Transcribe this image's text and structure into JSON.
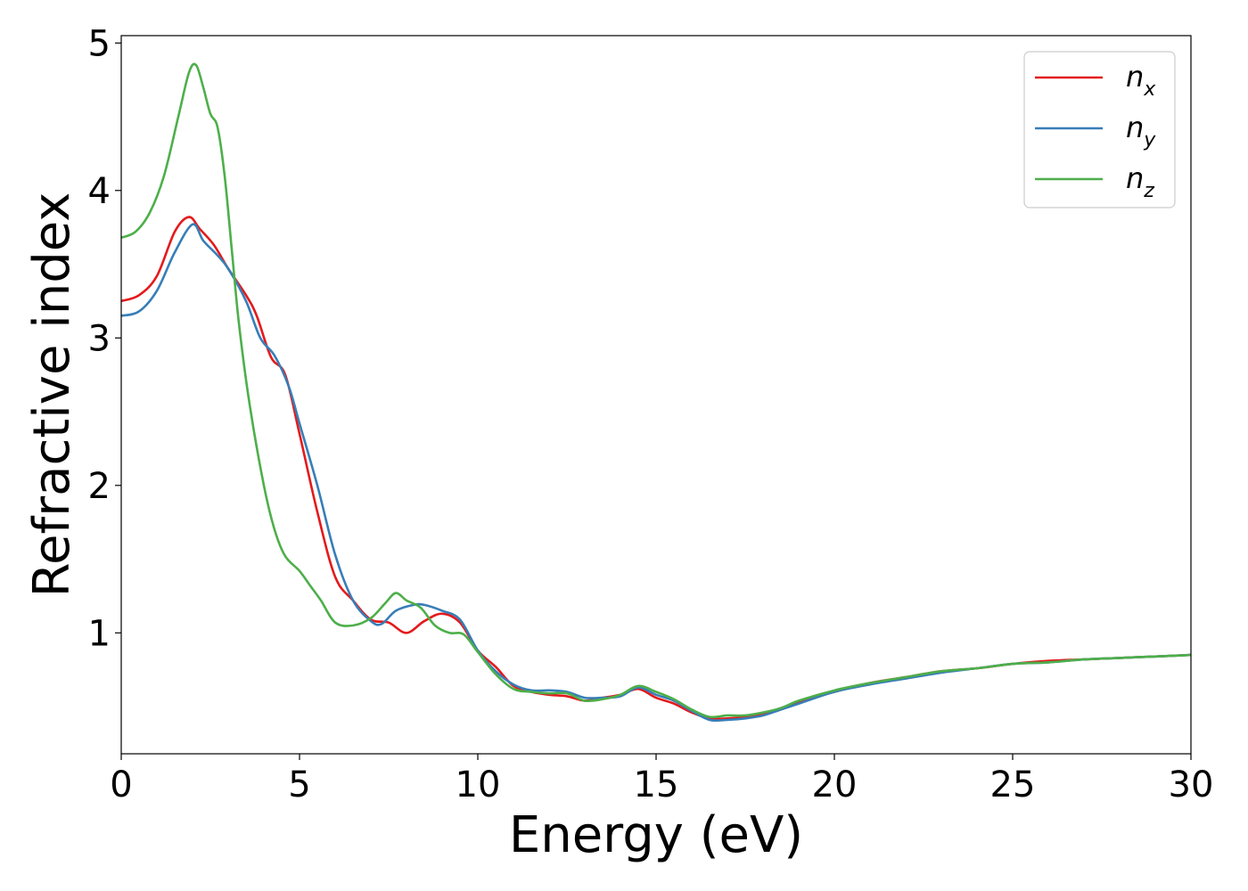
{
  "chart_data": {
    "type": "line",
    "title": "",
    "xlabel": "Energy (eV)",
    "ylabel": "Refractive index",
    "xlim": [
      0,
      30
    ],
    "ylim": [
      0.18,
      5.05
    ],
    "xticks": [
      "0",
      "5",
      "10",
      "15",
      "20",
      "25",
      "30"
    ],
    "yticks": [
      "1",
      "2",
      "3",
      "4",
      "5"
    ],
    "grid": false,
    "legend_position": "top-right",
    "series": [
      {
        "name": "n",
        "subscript": "x",
        "color": "#e41a1c",
        "points": [
          [
            0,
            3.25
          ],
          [
            0.5,
            3.29
          ],
          [
            1,
            3.42
          ],
          [
            1.5,
            3.72
          ],
          [
            1.9,
            3.82
          ],
          [
            2.2,
            3.74
          ],
          [
            2.6,
            3.63
          ],
          [
            3,
            3.47
          ],
          [
            3.5,
            3.29
          ],
          [
            3.8,
            3.15
          ],
          [
            4.2,
            2.87
          ],
          [
            4.6,
            2.75
          ],
          [
            5,
            2.35
          ],
          [
            5.5,
            1.82
          ],
          [
            6,
            1.38
          ],
          [
            6.5,
            1.22
          ],
          [
            7,
            1.09
          ],
          [
            7.5,
            1.07
          ],
          [
            8,
            1.0
          ],
          [
            8.5,
            1.08
          ],
          [
            9,
            1.13
          ],
          [
            9.5,
            1.07
          ],
          [
            10,
            0.88
          ],
          [
            10.5,
            0.77
          ],
          [
            11,
            0.64
          ],
          [
            11.5,
            0.6
          ],
          [
            12,
            0.58
          ],
          [
            12.5,
            0.57
          ],
          [
            13,
            0.54
          ],
          [
            13.5,
            0.56
          ],
          [
            14,
            0.58
          ],
          [
            14.5,
            0.62
          ],
          [
            15,
            0.56
          ],
          [
            15.5,
            0.52
          ],
          [
            16,
            0.46
          ],
          [
            16.5,
            0.42
          ],
          [
            17,
            0.42
          ],
          [
            17.5,
            0.43
          ],
          [
            18,
            0.45
          ],
          [
            18.5,
            0.49
          ],
          [
            19,
            0.53
          ],
          [
            20,
            0.6
          ],
          [
            21,
            0.66
          ],
          [
            22,
            0.7
          ],
          [
            23,
            0.74
          ],
          [
            24,
            0.76
          ],
          [
            25,
            0.79
          ],
          [
            26,
            0.81
          ],
          [
            27,
            0.82
          ],
          [
            28,
            0.83
          ],
          [
            29,
            0.84
          ],
          [
            30,
            0.85
          ]
        ]
      },
      {
        "name": "n",
        "subscript": "y",
        "color": "#377eb8",
        "points": [
          [
            0,
            3.15
          ],
          [
            0.5,
            3.18
          ],
          [
            1,
            3.32
          ],
          [
            1.5,
            3.58
          ],
          [
            2,
            3.77
          ],
          [
            2.3,
            3.66
          ],
          [
            2.7,
            3.56
          ],
          [
            3,
            3.47
          ],
          [
            3.5,
            3.25
          ],
          [
            3.9,
            3.0
          ],
          [
            4.3,
            2.88
          ],
          [
            4.7,
            2.67
          ],
          [
            5,
            2.42
          ],
          [
            5.5,
            2.0
          ],
          [
            6,
            1.53
          ],
          [
            6.5,
            1.22
          ],
          [
            7,
            1.08
          ],
          [
            7.3,
            1.06
          ],
          [
            7.7,
            1.15
          ],
          [
            8.2,
            1.19
          ],
          [
            8.5,
            1.19
          ],
          [
            9,
            1.15
          ],
          [
            9.5,
            1.09
          ],
          [
            10,
            0.88
          ],
          [
            10.5,
            0.74
          ],
          [
            11,
            0.65
          ],
          [
            11.5,
            0.61
          ],
          [
            12,
            0.61
          ],
          [
            12.5,
            0.6
          ],
          [
            13,
            0.56
          ],
          [
            13.5,
            0.56
          ],
          [
            14,
            0.57
          ],
          [
            14.5,
            0.63
          ],
          [
            15,
            0.58
          ],
          [
            15.5,
            0.54
          ],
          [
            16,
            0.47
          ],
          [
            16.5,
            0.41
          ],
          [
            17,
            0.41
          ],
          [
            17.5,
            0.42
          ],
          [
            18,
            0.44
          ],
          [
            18.5,
            0.48
          ],
          [
            19,
            0.52
          ],
          [
            20,
            0.6
          ],
          [
            21,
            0.65
          ],
          [
            22,
            0.69
          ],
          [
            23,
            0.73
          ],
          [
            24,
            0.76
          ],
          [
            25,
            0.79
          ],
          [
            26,
            0.8
          ],
          [
            27,
            0.82
          ],
          [
            28,
            0.83
          ],
          [
            29,
            0.84
          ],
          [
            30,
            0.85
          ]
        ]
      },
      {
        "name": "n",
        "subscript": "z",
        "color": "#4daf4a",
        "points": [
          [
            0,
            3.68
          ],
          [
            0.4,
            3.72
          ],
          [
            0.8,
            3.85
          ],
          [
            1.2,
            4.1
          ],
          [
            1.6,
            4.5
          ],
          [
            1.9,
            4.8
          ],
          [
            2.1,
            4.85
          ],
          [
            2.3,
            4.7
          ],
          [
            2.5,
            4.52
          ],
          [
            2.7,
            4.43
          ],
          [
            2.9,
            4.1
          ],
          [
            3.1,
            3.6
          ],
          [
            3.3,
            3.1
          ],
          [
            3.6,
            2.55
          ],
          [
            4,
            2.0
          ],
          [
            4.3,
            1.7
          ],
          [
            4.6,
            1.52
          ],
          [
            5,
            1.42
          ],
          [
            5.3,
            1.32
          ],
          [
            5.6,
            1.22
          ],
          [
            6,
            1.07
          ],
          [
            6.5,
            1.05
          ],
          [
            7,
            1.1
          ],
          [
            7.4,
            1.2
          ],
          [
            7.7,
            1.27
          ],
          [
            8,
            1.22
          ],
          [
            8.4,
            1.17
          ],
          [
            8.8,
            1.05
          ],
          [
            9.2,
            1.0
          ],
          [
            9.6,
            0.99
          ],
          [
            10,
            0.87
          ],
          [
            10.5,
            0.72
          ],
          [
            11,
            0.62
          ],
          [
            11.5,
            0.6
          ],
          [
            12,
            0.59
          ],
          [
            12.5,
            0.59
          ],
          [
            13,
            0.54
          ],
          [
            13.5,
            0.55
          ],
          [
            14,
            0.58
          ],
          [
            14.5,
            0.64
          ],
          [
            15,
            0.6
          ],
          [
            15.5,
            0.55
          ],
          [
            16,
            0.48
          ],
          [
            16.5,
            0.43
          ],
          [
            17,
            0.44
          ],
          [
            17.5,
            0.44
          ],
          [
            18,
            0.46
          ],
          [
            18.5,
            0.49
          ],
          [
            19,
            0.54
          ],
          [
            20,
            0.61
          ],
          [
            21,
            0.66
          ],
          [
            22,
            0.7
          ],
          [
            23,
            0.74
          ],
          [
            24,
            0.76
          ],
          [
            25,
            0.79
          ],
          [
            26,
            0.8
          ],
          [
            27,
            0.82
          ],
          [
            28,
            0.83
          ],
          [
            29,
            0.84
          ],
          [
            30,
            0.85
          ]
        ]
      }
    ]
  }
}
